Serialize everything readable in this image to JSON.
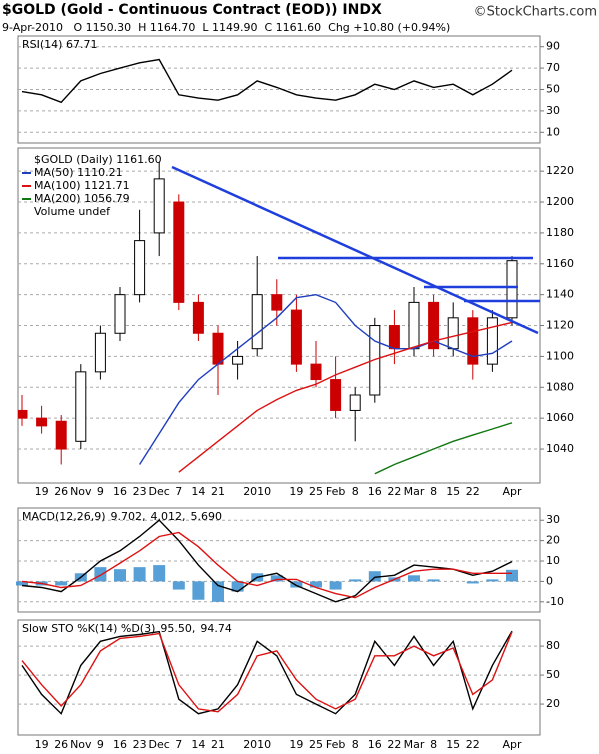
{
  "header": {
    "title": "$GOLD (Gold - Continuous Contract (EOD)) INDX",
    "brand": "©StockCharts.com",
    "quote": "9-Apr-2010   O 1150.30  H 1164.70  L 1149.90  C 1161.60  Chg +10.80 (+0.94%)"
  },
  "chart_data": [
    {
      "type": "line",
      "legend": [
        "RSI(14) 67.71"
      ],
      "ylim": [
        0,
        100
      ],
      "yticks": [
        10,
        30,
        50,
        70,
        90
      ],
      "grid": true,
      "series": [
        {
          "name": "RSI(14)",
          "color": "#000000",
          "values": [
            48,
            45,
            38,
            58,
            65,
            70,
            75,
            78,
            45,
            42,
            40,
            45,
            58,
            52,
            45,
            42,
            40,
            45,
            55,
            50,
            58,
            52,
            55,
            45,
            55,
            68
          ]
        }
      ]
    },
    {
      "type": "candlestick",
      "title": "$GOLD (Daily) 1161.60",
      "note": "Volume undef",
      "categories": [
        null,
        "19",
        "26",
        "Nov",
        "9",
        "16",
        "23",
        "Dec",
        "7",
        "14",
        "21",
        null,
        "2010",
        null,
        "19",
        "25",
        "Feb",
        "8",
        "16",
        "22",
        "Mar",
        "8",
        "15",
        "22",
        null,
        "Apr"
      ],
      "up_color": "#000000",
      "down_color": "#cc0000",
      "open": [
        1065,
        1060,
        1058,
        1045,
        1090,
        1115,
        1140,
        1180,
        1200,
        1135,
        1115,
        1095,
        1105,
        1140,
        1130,
        1095,
        1085,
        1065,
        1075,
        1120,
        1105,
        1135,
        1105,
        1125,
        1095,
        1125
      ],
      "high": [
        1075,
        1068,
        1062,
        1095,
        1120,
        1145,
        1195,
        1226,
        1205,
        1140,
        1120,
        1110,
        1165,
        1150,
        1140,
        1110,
        1100,
        1080,
        1125,
        1130,
        1145,
        1140,
        1135,
        1130,
        1130,
        1165
      ],
      "low": [
        1055,
        1050,
        1030,
        1040,
        1085,
        1110,
        1135,
        1165,
        1130,
        1110,
        1075,
        1085,
        1100,
        1120,
        1090,
        1080,
        1060,
        1045,
        1070,
        1095,
        1100,
        1100,
        1100,
        1085,
        1090,
        1120
      ],
      "close": [
        1060,
        1055,
        1040,
        1090,
        1115,
        1140,
        1175,
        1215,
        1135,
        1115,
        1095,
        1100,
        1140,
        1130,
        1095,
        1085,
        1065,
        1075,
        1120,
        1105,
        1135,
        1105,
        1125,
        1095,
        1125,
        1162
      ],
      "ylim": [
        1018,
        1235
      ],
      "yticks": [
        1040,
        1060,
        1080,
        1100,
        1120,
        1140,
        1160,
        1180,
        1200,
        1220
      ],
      "grid": true,
      "series": [
        {
          "name": "MA(50) 1110.21",
          "color": "#1f3fbf",
          "values": [
            null,
            null,
            null,
            null,
            null,
            null,
            1030,
            1050,
            1070,
            1085,
            1095,
            1105,
            1115,
            1125,
            1138,
            1140,
            1135,
            1120,
            1110,
            1105,
            1105,
            1110,
            1105,
            1100,
            1102,
            1110
          ]
        },
        {
          "name": "MA(100) 1121.71",
          "color": "#dd1111",
          "values": [
            null,
            null,
            null,
            null,
            null,
            null,
            null,
            null,
            1025,
            1035,
            1045,
            1055,
            1065,
            1072,
            1078,
            1082,
            1088,
            1093,
            1098,
            1102,
            1106,
            1110,
            1113,
            1116,
            1119,
            1122
          ]
        },
        {
          "name": "MA(200) 1056.79",
          "color": "#117711",
          "values": [
            null,
            null,
            null,
            null,
            null,
            null,
            null,
            null,
            null,
            null,
            null,
            null,
            null,
            null,
            null,
            null,
            null,
            null,
            1024,
            1030,
            1035,
            1040,
            1045,
            1049,
            1053,
            1057
          ]
        }
      ]
    },
    {
      "type": "line",
      "legend": [
        "MACD(12,26,9)",
        "9.702,",
        "4.012,",
        "5.690"
      ],
      "ylim": [
        -15,
        36
      ],
      "yticks": [
        -10,
        0,
        10,
        20,
        30
      ],
      "grid": true,
      "series": [
        {
          "name": "MACD",
          "color": "#000000",
          "values": [
            -2,
            -3,
            -5,
            2,
            10,
            15,
            22,
            30,
            20,
            8,
            -2,
            -5,
            2,
            4,
            -2,
            -6,
            -10,
            -7,
            2,
            3,
            8,
            7,
            6,
            3,
            5,
            9.7
          ]
        },
        {
          "name": "Signal",
          "color": "#dd1111",
          "values": [
            0,
            -1,
            -3,
            -2,
            3,
            9,
            15,
            22,
            24,
            17,
            8,
            0,
            -2,
            1,
            1,
            -3,
            -6,
            -8,
            -3,
            1,
            5,
            6,
            6,
            4,
            4,
            4
          ]
        },
        {
          "name": "Histogram",
          "style": "histogram",
          "color": "#3a8fd0",
          "values": [
            -2,
            -2,
            -2,
            4,
            7,
            6,
            7,
            8,
            -4,
            -9,
            -10,
            -5,
            4,
            3,
            -3,
            -3,
            -4,
            1,
            5,
            2,
            3,
            1,
            0,
            -1,
            1,
            5.7
          ]
        }
      ]
    },
    {
      "type": "line",
      "legend": [
        "Slow STO %K(14) %D(3)",
        "95.50,",
        "94.74"
      ],
      "ylim": [
        -12,
        107
      ],
      "yticks": [
        20,
        50,
        80
      ],
      "grid": true,
      "series": [
        {
          "name": "%K",
          "color": "#000000",
          "values": [
            60,
            30,
            10,
            60,
            85,
            90,
            92,
            95,
            25,
            10,
            15,
            40,
            85,
            70,
            30,
            20,
            10,
            30,
            85,
            60,
            90,
            60,
            85,
            15,
            60,
            95.5
          ]
        },
        {
          "name": "%D",
          "color": "#dd1111",
          "values": [
            65,
            40,
            18,
            40,
            75,
            88,
            90,
            93,
            40,
            15,
            12,
            30,
            70,
            75,
            45,
            25,
            15,
            25,
            70,
            70,
            80,
            70,
            78,
            30,
            45,
            94.74
          ]
        }
      ]
    }
  ]
}
